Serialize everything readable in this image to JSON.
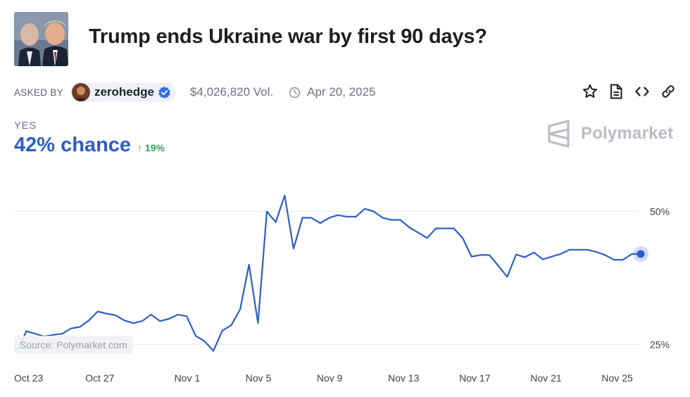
{
  "market": {
    "title": "Trump ends Ukraine war by first 90 days?",
    "asked_by_label": "ASKED BY",
    "user": "zerohedge",
    "volume": "$4,026,820 Vol.",
    "date": "Apr 20, 2025",
    "outcome_label": "YES",
    "chance": "42% chance",
    "change": "↑ 19%"
  },
  "brand": {
    "name": "Polymarket"
  },
  "source": "Source: Polymarket.com",
  "icons": [
    "star-icon",
    "document-icon",
    "embed-icon",
    "link-icon",
    "clock-icon",
    "verified-icon"
  ],
  "colors": {
    "line": "#2f5dc5",
    "accent": "#2f5dc5",
    "positive": "#3aa05a",
    "grid": "#e8eaee"
  },
  "chart_data": {
    "type": "line",
    "title": "",
    "xlabel": "",
    "ylabel": "",
    "x_ticks": [
      {
        "label": "Oct 23",
        "day": 0
      },
      {
        "label": "Oct 27",
        "day": 4
      },
      {
        "label": "Nov 1",
        "day": 9
      },
      {
        "label": "Nov 5",
        "day": 13
      },
      {
        "label": "Nov 9",
        "day": 17
      },
      {
        "label": "Nov 13",
        "day": 21
      },
      {
        "label": "Nov 17",
        "day": 25
      },
      {
        "label": "Nov 21",
        "day": 29
      },
      {
        "label": "Nov 25",
        "day": 33
      }
    ],
    "y_ticks": [
      {
        "label": "50%",
        "value": 50
      },
      {
        "label": "25%",
        "value": 25
      }
    ],
    "ylim": [
      22,
      56
    ],
    "xlim": [
      0,
      35
    ],
    "series": [
      {
        "name": "Yes",
        "x": [
          0,
          0.5,
          1,
          1.5,
          2,
          2.5,
          3,
          3.5,
          4,
          4.5,
          5,
          5.5,
          6,
          6.5,
          7,
          7.5,
          8,
          8.5,
          9,
          9.5,
          10,
          10.5,
          11,
          11.5,
          12,
          12.5,
          13,
          13.5,
          14,
          14.5,
          15,
          15.5,
          16,
          16.5,
          17,
          17.5,
          18,
          18.5,
          19,
          19.5,
          20,
          20.5,
          21,
          21.5,
          22,
          22.5,
          23,
          23.5,
          24,
          24.5,
          25,
          25.5,
          26,
          26.5,
          27,
          27.5,
          28,
          28.5,
          29,
          29.5,
          30,
          30.5,
          31,
          31.5,
          32,
          32.5,
          33,
          33.5,
          34,
          34.5,
          35
        ],
        "values": [
          24,
          27.5,
          27,
          26.5,
          26.8,
          27,
          28,
          28.3,
          29.5,
          31.2,
          30.8,
          30.5,
          29.5,
          29,
          29.4,
          30.6,
          29.4,
          29.8,
          30.6,
          30.3,
          26.6,
          25.6,
          23.8,
          27.6,
          28.6,
          31.6,
          40,
          29,
          50,
          48,
          53,
          43,
          48.8,
          48.8,
          47.8,
          48.8,
          49.3,
          49,
          49,
          50.5,
          50,
          48.8,
          48.4,
          48.4,
          47,
          46,
          45,
          46.8,
          46.8,
          46.8,
          45,
          41.5,
          41.8,
          41.8,
          39.8,
          37.7,
          41.9,
          41.4,
          42.3,
          41,
          41.5,
          42,
          42.8,
          42.8,
          42.8,
          42.4,
          41.8,
          40.9,
          40.9,
          42,
          42
        ]
      }
    ]
  }
}
